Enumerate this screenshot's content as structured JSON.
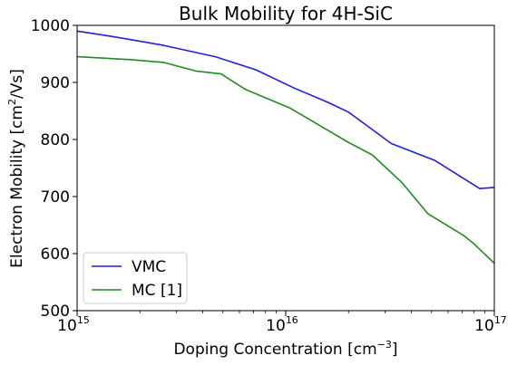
{
  "chart_data": {
    "type": "line",
    "title": "Bulk Mobility for 4H-SiC",
    "xlabel": {
      "main": "Doping Concentration [cm",
      "sup": "−3",
      "end": "]"
    },
    "ylabel": {
      "main": "Electron Mobility [cm",
      "sup": "2",
      "end": "/Vs]"
    },
    "x_scale": "log",
    "xlim": [
      1000000000000000.0,
      1e+17
    ],
    "ylim": [
      500,
      1000
    ],
    "x_ticks": [
      {
        "value": 1000000000000000.0,
        "base": "10",
        "exp": "15"
      },
      {
        "value": 1e+16,
        "base": "10",
        "exp": "16"
      },
      {
        "value": 1e+17,
        "base": "10",
        "exp": "17"
      }
    ],
    "y_ticks": [
      500,
      600,
      700,
      800,
      900,
      1000
    ],
    "grid": false,
    "legend_position": "bottom-left",
    "series": [
      {
        "name": "VMC",
        "color": "#1f1fdc",
        "x": [
          1000000000000000.0,
          1500000000000000.0,
          2600000000000000.0,
          4600000000000000.0,
          7200000000000000.0,
          1.1e+16,
          1.6e+16,
          2e+16,
          2.5e+16,
          3.2e+16,
          5.2e+16,
          8.5e+16,
          1e+17
        ],
        "y": [
          990,
          980,
          965,
          945,
          922,
          890,
          865,
          848,
          822,
          793,
          763,
          714,
          716
        ]
      },
      {
        "name": "MC [1]",
        "color": "#1e8c1e",
        "x": [
          1000000000000000.0,
          1800000000000000.0,
          2600000000000000.0,
          3700000000000000.0,
          4900000000000000.0,
          6400000000000000.0,
          1.05e+16,
          2e+16,
          2.6e+16,
          3.6e+16,
          4.8e+16,
          7.1e+16,
          8e+16,
          1e+17
        ],
        "y": [
          945,
          940,
          935,
          920,
          915,
          888,
          855,
          795,
          773,
          725,
          670,
          632,
          617,
          583
        ]
      }
    ]
  }
}
